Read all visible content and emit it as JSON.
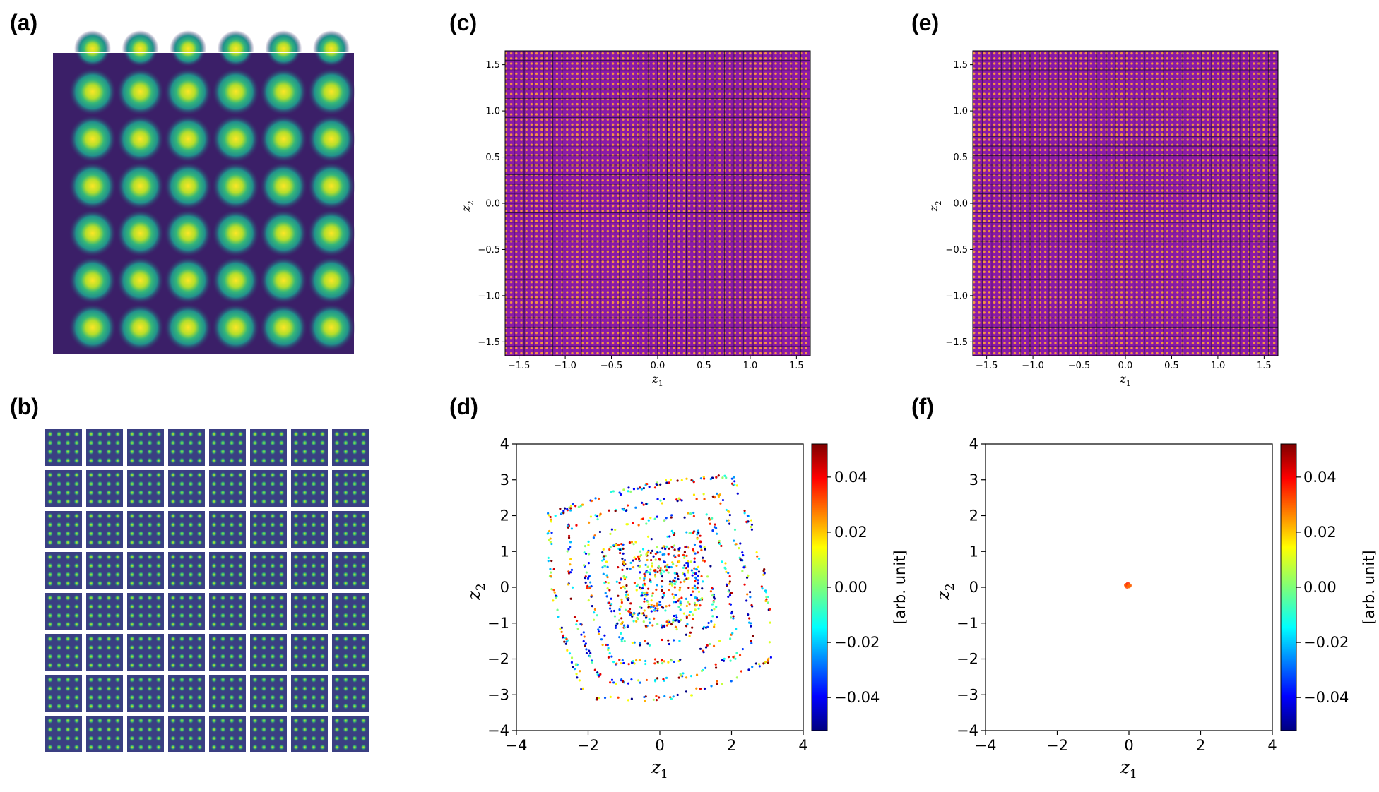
{
  "panels": {
    "a": {
      "label": "(a)"
    },
    "b": {
      "label": "(b)"
    },
    "c": {
      "label": "(c)"
    },
    "d": {
      "label": "(d)"
    },
    "e": {
      "label": "(e)"
    },
    "f": {
      "label": "(f)"
    }
  },
  "colors": {
    "viridis_bg": "#3b1f68",
    "viridis_glow": "#21918c",
    "viridis_peak": "#fde725",
    "plasma_bg": "#8a1aa8",
    "plasma_dot": "#f89540",
    "grid_line": "#1b0a2b"
  },
  "chart_data": [
    {
      "id": "a",
      "type": "heatmap",
      "title": "",
      "description_values": {
        "rows": 6,
        "cols": 6
      },
      "xlabel": "",
      "ylabel": ""
    },
    {
      "id": "b",
      "type": "heatmap",
      "title": "",
      "description_values": {
        "tile_rows": 8,
        "tile_cols": 8,
        "dots_per_tile": 16
      },
      "xlabel": "",
      "ylabel": ""
    },
    {
      "id": "c",
      "type": "heatmap",
      "title": "",
      "xlabel": "z",
      "xlabel_sub": "1",
      "ylabel": "z",
      "ylabel_sub": "2",
      "xlim": [
        -1.65,
        1.65
      ],
      "ylim": [
        -1.65,
        1.65
      ],
      "xticks": [
        "−1.5",
        "−1.0",
        "−0.5",
        "0.0",
        "0.5",
        "1.0",
        "1.5"
      ],
      "xtick_values": [
        -1.5,
        -1.0,
        -0.5,
        0.0,
        0.5,
        1.0,
        1.5
      ],
      "yticks": [
        "−1.5",
        "−1.0",
        "−0.5",
        "0.0",
        "0.5",
        "1.0",
        "1.5"
      ],
      "ytick_values": [
        -1.5,
        -1.0,
        -0.5,
        0.0,
        0.5,
        1.0,
        1.5
      ],
      "grid_cells": 32
    },
    {
      "id": "d",
      "type": "scatter",
      "title": "",
      "xlabel": "z",
      "xlabel_sub": "1",
      "ylabel": "z",
      "ylabel_sub": "2",
      "xlim": [
        -4,
        4
      ],
      "ylim": [
        -4,
        4
      ],
      "xticks": [
        "−4",
        "−2",
        "0",
        "2",
        "4"
      ],
      "xtick_values": [
        -4,
        -2,
        0,
        2,
        4
      ],
      "yticks": [
        "−4",
        "−3",
        "−2",
        "−1",
        "0",
        "1",
        "2",
        "3",
        "4"
      ],
      "ytick_values": [
        -4,
        -3,
        -2,
        -1,
        0,
        1,
        2,
        3,
        4
      ],
      "colorbar": {
        "label": "[arb. unit]",
        "range": [
          -0.052,
          0.052
        ],
        "ticks": [
          "0.04",
          "0.02",
          "0.00",
          "−0.02",
          "−0.04"
        ],
        "tick_values": [
          0.04,
          0.02,
          0.0,
          -0.02,
          -0.04
        ]
      },
      "distribution": {
        "description": "distorted square lattice of points, rotated ~12 degrees",
        "extent_z": 2.6,
        "rotation_deg": 12,
        "rings": 6
      }
    },
    {
      "id": "e",
      "type": "heatmap",
      "title": "",
      "xlabel": "z",
      "xlabel_sub": "1",
      "ylabel": "z",
      "ylabel_sub": "2",
      "xlim": [
        -1.65,
        1.65
      ],
      "ylim": [
        -1.65,
        1.65
      ],
      "xticks": [
        "−1.5",
        "−1.0",
        "−0.5",
        "0.0",
        "0.5",
        "1.0",
        "1.5"
      ],
      "xtick_values": [
        -1.5,
        -1.0,
        -0.5,
        0.0,
        0.5,
        1.0,
        1.5
      ],
      "yticks": [
        "−1.5",
        "−1.0",
        "−0.5",
        "0.0",
        "0.5",
        "1.0",
        "1.5"
      ],
      "ytick_values": [
        -1.5,
        -1.0,
        -0.5,
        0.0,
        0.5,
        1.0,
        1.5
      ],
      "grid_cells": 32
    },
    {
      "id": "f",
      "type": "scatter",
      "title": "",
      "xlabel": "z",
      "xlabel_sub": "1",
      "ylabel": "z",
      "ylabel_sub": "2",
      "xlim": [
        -4,
        4
      ],
      "ylim": [
        -4,
        4
      ],
      "xticks": [
        "−4",
        "−2",
        "0",
        "2",
        "4"
      ],
      "xtick_values": [
        -4,
        -2,
        0,
        2,
        4
      ],
      "yticks": [
        "−4",
        "−3",
        "−2",
        "−1",
        "0",
        "1",
        "2",
        "3",
        "4"
      ],
      "ytick_values": [
        -4,
        -3,
        -2,
        -1,
        0,
        1,
        2,
        3,
        4
      ],
      "colorbar": {
        "label": "[arb. unit]",
        "range": [
          -0.052,
          0.052
        ],
        "ticks": [
          "0.04",
          "0.02",
          "0.00",
          "−0.02",
          "−0.04"
        ],
        "tick_values": [
          0.04,
          0.02,
          0.0,
          -0.02,
          -0.04
        ]
      },
      "points": [
        {
          "x": -0.08,
          "y": 0.06,
          "value": 0.03
        },
        {
          "x": -0.03,
          "y": 0.09,
          "value": 0.035
        },
        {
          "x": 0.02,
          "y": 0.05,
          "value": 0.03
        },
        {
          "x": -0.05,
          "y": 0.02,
          "value": 0.032
        },
        {
          "x": 0.0,
          "y": 0.03,
          "value": 0.028
        }
      ]
    }
  ]
}
